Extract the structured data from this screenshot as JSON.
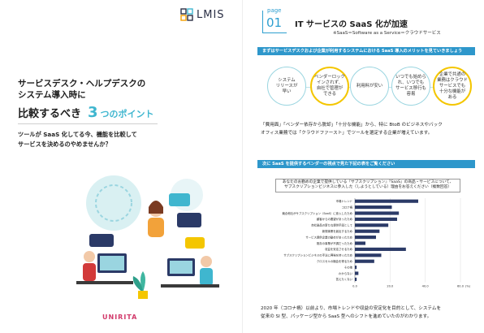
{
  "logo": {
    "text": "LMIS"
  },
  "cover": {
    "title_line1": "サービスデスク・ヘルプデスクの",
    "title_line2": "システム導入時に",
    "sub_prefix": "比較するべき",
    "sub_number": "3",
    "sub_suffix": "つのポイント",
    "lead_line1": "ツールが SaaS 化してる今、機能を比較して",
    "lead_line2": "サービスを決めるのやめませんか？",
    "brand": "UNIRITA"
  },
  "page": {
    "label": "page",
    "number": "01",
    "title": "IT サービスの SaaS 化が加速",
    "note": "※SaaS＝Software as a Service＝クラウドサービス",
    "band1": "まずはサービスデスクおよび企業が利用するシステムにおける SaaS 導入のメリットを見ていきましょう",
    "merits": [
      "システム\nリリースが\n早い",
      "ベンダーロック\nインされず、\n自社で管理が\nできる",
      "利用料が安い",
      "いつでも始めら\nれ、いつでも\nサービス移行も\n容易",
      "企業で共通の\n業務はクラウド\nサービスでも\n十分な機能が\nある"
    ],
    "para1_line1": "「費用面」「ベンダー依存から脱却」「十分な機能」から、特に BtoB のビジネスやバック",
    "para1_line2": "オフィス業務では「クラウドファースト」でツールを選定する企業が増えています。",
    "band2": "次に SaaS を提供するベンダーの視点で見た下記の表をご覧ください",
    "chart_head_line1": "あなたのお勤めの企業で提供している『サブスクリプション』『SaaS』の商品・サービスについて、",
    "chart_head_line2": "サブスクリプションビジネスに参入した（しようとしている）理由をお答えください（複数回答）",
    "para2_line1": "2020 年（コロナ禍）以前より、市場トレンドや収益の安定化を目的として、システムを",
    "para2_line2": "従来の SI 型、パッケージ型から SaaS 型へのシフトを進めていたのがわかります。"
  },
  "chart_data": {
    "type": "bar",
    "orientation": "horizontal",
    "categories": [
      "市場トレンド",
      "コロナ禍",
      "競合他社がサブスクリプション（SaaS）に参入したため",
      "顧客からの要望があったため",
      "自社製品の新たな提供手段として",
      "新規事業を創出するため",
      "サービス提供企業の勧めがあったため",
      "既存の事業が不調だったため",
      "収益を安定させるため",
      "サブスクリプションビジネスの手法に興味を持ったため",
      "クロスセルの機会を得るため",
      "その他",
      "わからない",
      "答えたくない"
    ],
    "values": [
      36,
      21,
      25,
      24,
      19,
      14,
      12,
      6,
      29,
      15,
      11,
      1,
      2,
      1
    ],
    "xlim": [
      0,
      60
    ],
    "xticks": [
      "0.0",
      "20.0",
      "40.0",
      "60.0"
    ],
    "unit": "(%)",
    "bar_color": "#2b3a67"
  }
}
